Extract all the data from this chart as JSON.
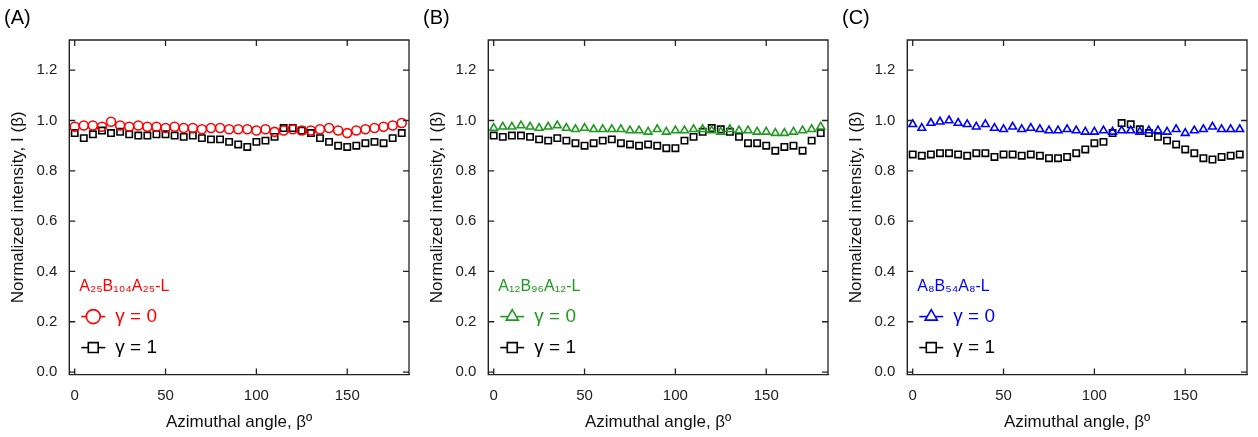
{
  "chart_data": [
    {
      "type": "scatter",
      "title": "(A)",
      "xlabel": "Azimuthal angle, βº",
      "ylabel": "Normalized intensity, I (β)",
      "legend_title": "A₂₅B₁₀₄A₂₅-L",
      "legend": "bottom left",
      "grid": false,
      "x": [
        0,
        5,
        10,
        15,
        20,
        25,
        30,
        35,
        40,
        45,
        50,
        55,
        60,
        65,
        70,
        75,
        80,
        85,
        90,
        95,
        100,
        105,
        110,
        115,
        120,
        125,
        130,
        135,
        140,
        145,
        150,
        155,
        160,
        165,
        170,
        175,
        180
      ],
      "xlim": [
        -3,
        184
      ],
      "xticks": [
        0,
        50,
        100,
        150
      ],
      "ylim": [
        -0.01,
        1.32
      ],
      "yticks": [
        {
          "value": 0,
          "label": "0.0"
        },
        {
          "value": 0.2,
          "label": "0.2"
        },
        {
          "value": 0.4,
          "label": "0.4"
        },
        {
          "value": 0.6,
          "label": "0.6"
        },
        {
          "value": 0.8,
          "label": "0.8"
        },
        {
          "value": 1,
          "label": "1.0"
        },
        {
          "value": 1.2,
          "label": "1.2"
        }
      ],
      "series": [
        {
          "name": "γ = 0",
          "color": "#ff0000",
          "marker": "circle",
          "values": [
            0.975,
            0.98,
            0.98,
            0.975,
            0.995,
            0.98,
            0.975,
            0.98,
            0.975,
            0.975,
            0.97,
            0.975,
            0.97,
            0.97,
            0.965,
            0.97,
            0.97,
            0.965,
            0.965,
            0.965,
            0.96,
            0.965,
            0.955,
            0.96,
            0.965,
            0.96,
            0.96,
            0.965,
            0.97,
            0.96,
            0.95,
            0.96,
            0.965,
            0.97,
            0.975,
            0.98,
            0.99
          ]
        },
        {
          "name": "γ = 1",
          "color": "#000000",
          "marker": "square",
          "values": [
            0.95,
            0.93,
            0.945,
            0.96,
            0.95,
            0.955,
            0.945,
            0.94,
            0.94,
            0.945,
            0.945,
            0.94,
            0.935,
            0.94,
            0.93,
            0.925,
            0.925,
            0.915,
            0.905,
            0.895,
            0.915,
            0.92,
            0.935,
            0.97,
            0.97,
            0.96,
            0.95,
            0.93,
            0.915,
            0.9,
            0.895,
            0.9,
            0.91,
            0.915,
            0.91,
            0.93,
            0.95
          ]
        }
      ]
    },
    {
      "type": "scatter",
      "title": "(B)",
      "xlabel": "Azimuthal angle, βº",
      "ylabel": "Normalized intensity, I (β)",
      "legend_title": "A₁₂B₉₆A₁₂-L",
      "legend": "bottom left",
      "grid": false,
      "x": [
        0,
        5,
        10,
        15,
        20,
        25,
        30,
        35,
        40,
        45,
        50,
        55,
        60,
        65,
        70,
        75,
        80,
        85,
        90,
        95,
        100,
        105,
        110,
        115,
        120,
        125,
        130,
        135,
        140,
        145,
        150,
        155,
        160,
        165,
        170,
        175,
        180
      ],
      "xlim": [
        -3,
        184
      ],
      "xticks": [
        0,
        50,
        100,
        150
      ],
      "ylim": [
        -0.01,
        1.32
      ],
      "yticks": [
        {
          "value": 0,
          "label": "0.0"
        },
        {
          "value": 0.2,
          "label": "0.2"
        },
        {
          "value": 0.4,
          "label": "0.4"
        },
        {
          "value": 0.6,
          "label": "0.6"
        },
        {
          "value": 0.8,
          "label": "0.8"
        },
        {
          "value": 1,
          "label": "1.0"
        },
        {
          "value": 1.2,
          "label": "1.2"
        }
      ],
      "series": [
        {
          "name": "γ = 0",
          "color": "#1e9a1e",
          "marker": "triangle",
          "values": [
            0.97,
            0.975,
            0.975,
            0.98,
            0.975,
            0.97,
            0.975,
            0.98,
            0.97,
            0.965,
            0.97,
            0.965,
            0.965,
            0.965,
            0.965,
            0.96,
            0.96,
            0.955,
            0.965,
            0.955,
            0.96,
            0.96,
            0.965,
            0.965,
            0.96,
            0.955,
            0.965,
            0.96,
            0.96,
            0.955,
            0.955,
            0.95,
            0.95,
            0.955,
            0.96,
            0.965,
            0.975
          ]
        },
        {
          "name": "γ = 1",
          "color": "#000000",
          "marker": "square",
          "values": [
            0.94,
            0.935,
            0.94,
            0.94,
            0.935,
            0.925,
            0.92,
            0.93,
            0.92,
            0.91,
            0.9,
            0.91,
            0.92,
            0.925,
            0.91,
            0.905,
            0.9,
            0.905,
            0.9,
            0.89,
            0.89,
            0.92,
            0.935,
            0.955,
            0.97,
            0.965,
            0.955,
            0.935,
            0.91,
            0.91,
            0.9,
            0.88,
            0.895,
            0.9,
            0.88,
            0.92,
            0.95
          ]
        }
      ]
    },
    {
      "type": "scatter",
      "title": "(C)",
      "xlabel": "Azimuthal angle, βº",
      "ylabel": "Normalized intensity, I (β)",
      "legend_title": "A₈B₅₄A₈-L",
      "legend": "bottom left",
      "grid": false,
      "x": [
        0,
        5,
        10,
        15,
        20,
        25,
        30,
        35,
        40,
        45,
        50,
        55,
        60,
        65,
        70,
        75,
        80,
        85,
        90,
        95,
        100,
        105,
        110,
        115,
        120,
        125,
        130,
        135,
        140,
        145,
        150,
        155,
        160,
        165,
        170,
        175,
        180
      ],
      "xlim": [
        -3,
        184
      ],
      "xticks": [
        0,
        50,
        100,
        150
      ],
      "ylim": [
        -0.01,
        1.32
      ],
      "yticks": [
        {
          "value": 0,
          "label": "0.0"
        },
        {
          "value": 0.2,
          "label": "0.2"
        },
        {
          "value": 0.4,
          "label": "0.4"
        },
        {
          "value": 0.6,
          "label": "0.6"
        },
        {
          "value": 0.8,
          "label": "0.8"
        },
        {
          "value": 1,
          "label": "1.0"
        },
        {
          "value": 1.2,
          "label": "1.2"
        }
      ],
      "series": [
        {
          "name": "γ = 0",
          "color": "#0000ff",
          "marker": "triangle",
          "values": [
            0.985,
            0.97,
            0.99,
            0.995,
            1.0,
            0.99,
            0.985,
            0.975,
            0.985,
            0.97,
            0.965,
            0.975,
            0.965,
            0.97,
            0.965,
            0.96,
            0.96,
            0.965,
            0.96,
            0.955,
            0.955,
            0.96,
            0.955,
            0.96,
            0.96,
            0.955,
            0.96,
            0.96,
            0.955,
            0.965,
            0.95,
            0.96,
            0.965,
            0.975,
            0.965,
            0.965,
            0.965
          ]
        },
        {
          "name": "γ = 1",
          "color": "#000000",
          "marker": "square",
          "values": [
            0.865,
            0.86,
            0.865,
            0.87,
            0.87,
            0.865,
            0.86,
            0.87,
            0.87,
            0.855,
            0.865,
            0.865,
            0.86,
            0.865,
            0.86,
            0.85,
            0.85,
            0.855,
            0.87,
            0.885,
            0.91,
            0.915,
            0.95,
            0.99,
            0.985,
            0.965,
            0.95,
            0.935,
            0.92,
            0.905,
            0.885,
            0.87,
            0.85,
            0.845,
            0.855,
            0.86,
            0.865
          ]
        }
      ]
    }
  ]
}
